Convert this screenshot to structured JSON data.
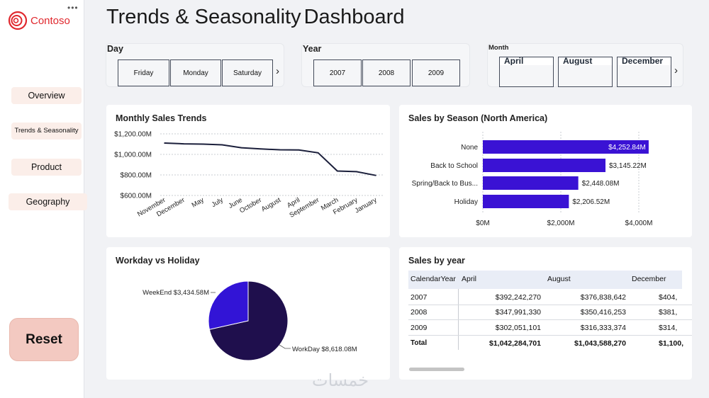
{
  "app": {
    "logo_text": "Contoso",
    "menu_dots": "•••",
    "title_part1": "Trends & Seasonality",
    "title_part2": "Dashboard",
    "reset_label": "Reset",
    "watermark": "خمسات"
  },
  "nav": [
    {
      "label": "Overview"
    },
    {
      "label": "Trends & Seasonality"
    },
    {
      "label": "Product"
    },
    {
      "label": "Geography"
    }
  ],
  "slicers": {
    "day": {
      "label": "Day",
      "items": [
        "Friday",
        "Monday",
        "Saturday"
      ]
    },
    "year": {
      "label": "Year",
      "items": [
        "2007",
        "2008",
        "2009"
      ]
    },
    "month": {
      "label": "Month",
      "items": [
        "April",
        "August",
        "December"
      ]
    },
    "next_glyph": "›"
  },
  "monthly_trend": {
    "title": "Monthly Sales Trends",
    "y_ticks": [
      "$1,200.00M",
      "$1,000.00M",
      "$800.00M",
      "$600.00M"
    ],
    "line_color": "#1b1f3b"
  },
  "season": {
    "title": "Sales by Season (North America)",
    "bar_color": "#3a12d4",
    "x_ticks": [
      "$0M",
      "$2,000M",
      "$4,000M"
    ]
  },
  "workday": {
    "title": "Workday vs Holiday",
    "colors": {
      "WorkDay": "#1f0f4d",
      "WeekEnd": "#3214d6"
    }
  },
  "sales_by_year": {
    "title": "Sales by year",
    "columns": [
      "CalendarYear",
      "April",
      "August",
      "December"
    ],
    "rows": [
      [
        "2007",
        "$392,242,270",
        "$376,838,642",
        "$404,"
      ],
      [
        "2008",
        "$347,991,330",
        "$350,416,253",
        "$381,"
      ],
      [
        "2009",
        "$302,051,101",
        "$316,333,374",
        "$314,"
      ],
      [
        "Total",
        "$1,042,284,701",
        "$1,043,588,270",
        "$1,100,"
      ]
    ]
  },
  "chart_data": [
    {
      "type": "line",
      "title": "Monthly Sales Trends",
      "categories": [
        "November",
        "December",
        "May",
        "July",
        "June",
        "October",
        "August",
        "April",
        "September",
        "March",
        "February",
        "January"
      ],
      "values": [
        1110,
        1103,
        1100,
        1093,
        1065,
        1053,
        1045,
        1043,
        1015,
        838,
        832,
        795
      ],
      "y_unit": "$M",
      "ylim": [
        600,
        1200
      ],
      "grid": true
    },
    {
      "type": "bar",
      "orientation": "horizontal",
      "title": "Sales by Season (North America)",
      "categories": [
        "None",
        "Back to School",
        "Spring/Back to Bus...",
        "Holiday"
      ],
      "values": [
        4252.84,
        3145.22,
        2448.08,
        2206.52
      ],
      "labels": [
        "$4,252.84M",
        "$3,145.22M",
        "$2,448.08M",
        "$2,206.52M"
      ],
      "x_unit": "$M",
      "xlim": [
        0,
        4500
      ],
      "grid": true
    },
    {
      "type": "pie",
      "title": "Workday vs Holiday",
      "categories": [
        "WorkDay",
        "WeekEnd"
      ],
      "values": [
        8618.08,
        3434.58
      ],
      "labels": [
        "WorkDay $8,618.08M",
        "WeekEnd $3,434.58M"
      ]
    }
  ]
}
